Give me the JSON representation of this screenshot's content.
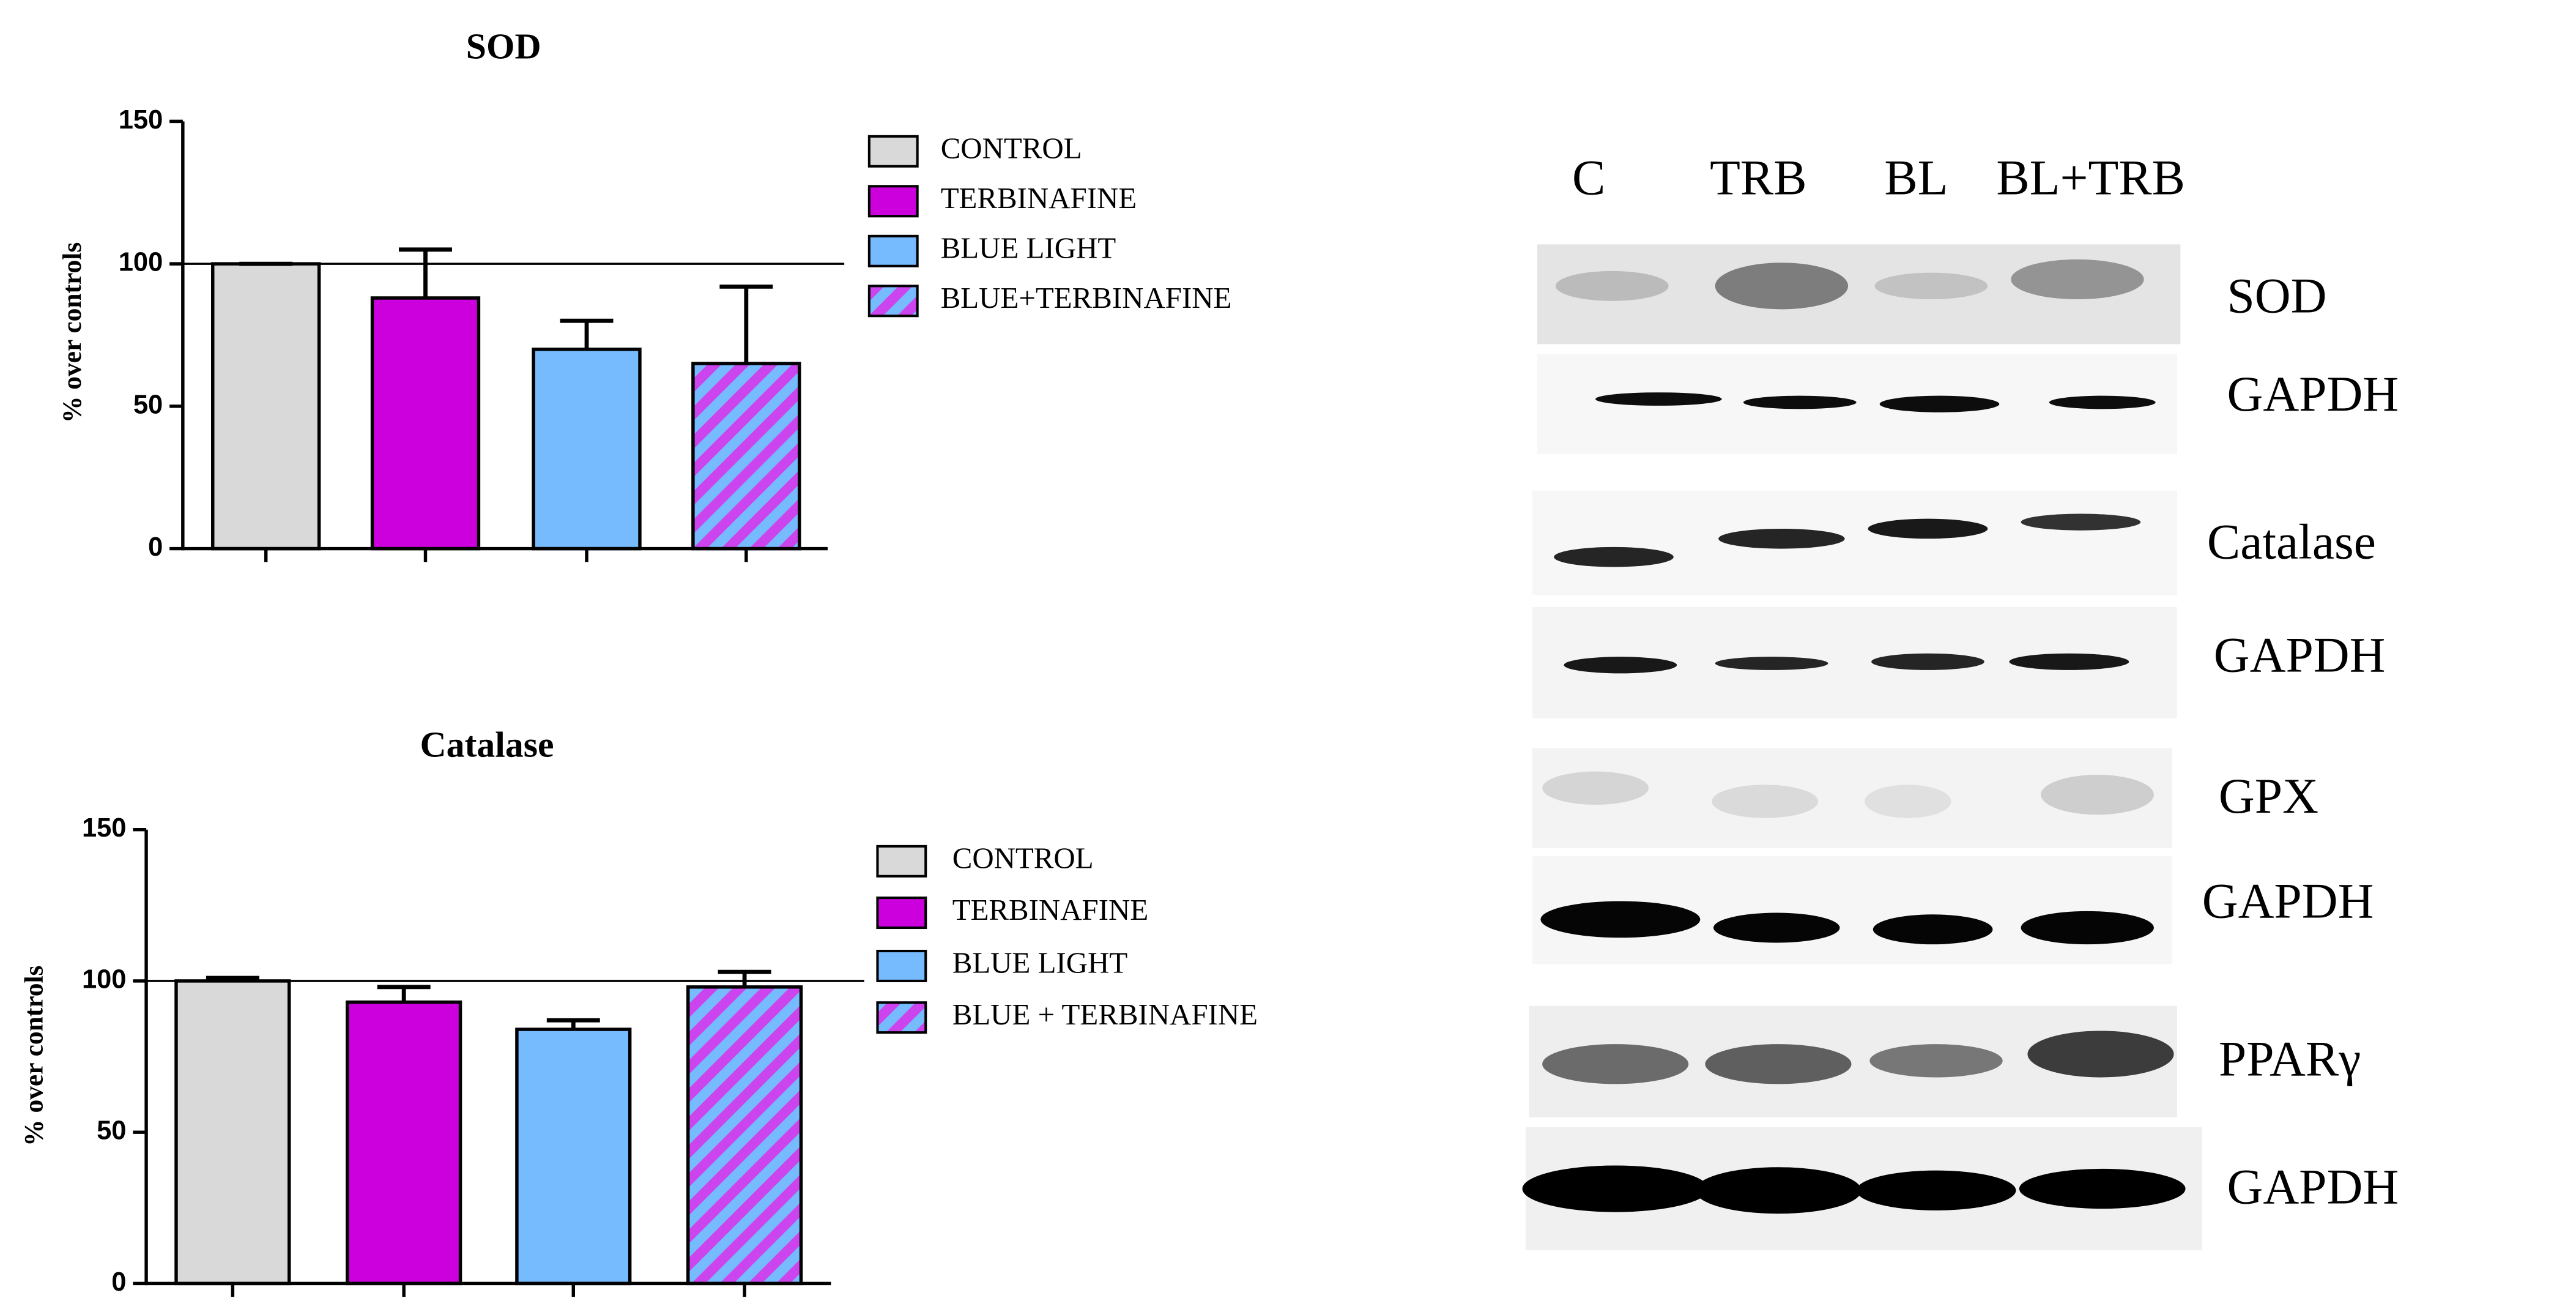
{
  "chart_data": [
    {
      "type": "bar",
      "title": "SOD",
      "y_label": "% over controls",
      "ylim": [
        0,
        150
      ],
      "yticks": [
        0,
        50,
        100,
        150
      ],
      "reference_line": 100,
      "series": [
        {
          "name": "CONTROL",
          "color": "#d9d9d9",
          "values": [
            100
          ],
          "errors": [
            0
          ]
        },
        {
          "name": "TERBINAFINE",
          "color": "#cc00dd",
          "values": [
            88
          ],
          "errors": [
            17
          ]
        },
        {
          "name": "BLUE LIGHT",
          "color": "#77bbff",
          "values": [
            70
          ],
          "errors": [
            10
          ]
        },
        {
          "name": "BLUE+TERBINAFINE",
          "color": "#cc44ee",
          "color2": "#77bbff",
          "pattern": "hatch",
          "values": [
            65
          ],
          "errors": [
            27
          ]
        }
      ]
    },
    {
      "type": "bar",
      "title": "Catalase",
      "y_label": "% over controls",
      "ylim": [
        0,
        150
      ],
      "yticks": [
        0,
        50,
        100,
        150
      ],
      "reference_line": 100,
      "series": [
        {
          "name": "CONTROL",
          "color": "#d9d9d9",
          "values": [
            100
          ],
          "errors": [
            1
          ]
        },
        {
          "name": "TERBINAFINE",
          "color": "#cc00dd",
          "values": [
            93
          ],
          "errors": [
            5
          ]
        },
        {
          "name": "BLUE LIGHT",
          "color": "#77bbff",
          "values": [
            84
          ],
          "errors": [
            3
          ]
        },
        {
          "name": "BLUE + TERBINAFINE",
          "color": "#cc44ee",
          "color2": "#77bbff",
          "pattern": "hatch",
          "values": [
            98
          ],
          "errors": [
            5
          ]
        }
      ]
    }
  ],
  "blot": {
    "lanes": [
      "C",
      "TRB",
      "BL",
      "BL+TRB"
    ],
    "rows": [
      "SOD",
      "GAPDH",
      "Catalase",
      "GAPDH",
      "GPX",
      "GAPDH",
      "PPARγ",
      "GAPDH"
    ]
  }
}
